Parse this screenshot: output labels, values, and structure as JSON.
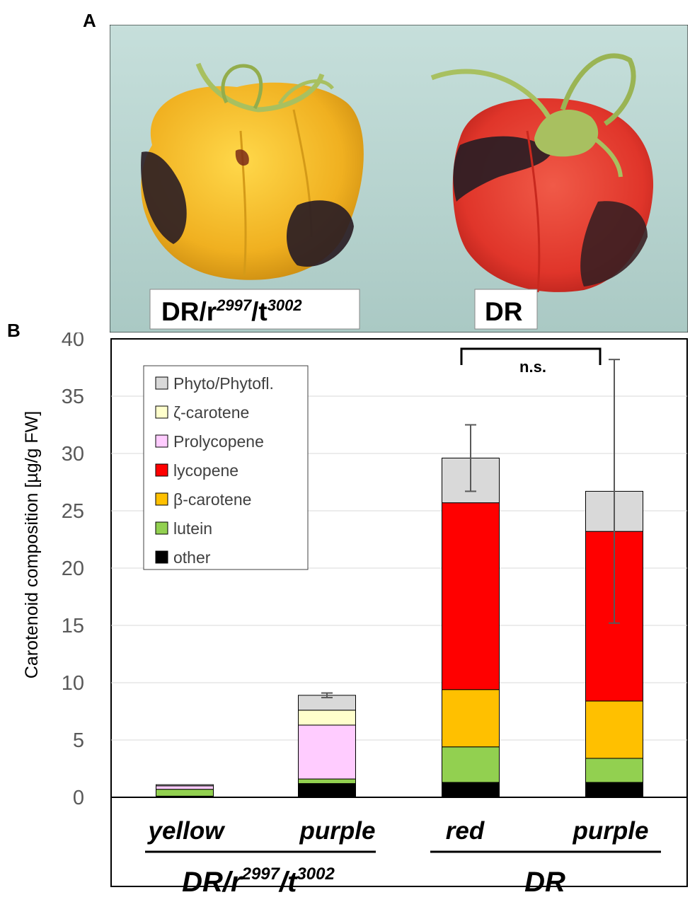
{
  "panels": {
    "a": "A",
    "b": "B"
  },
  "photo": {
    "left_label": {
      "base": "DR/r",
      "sup1": "2997",
      "mid": "/t",
      "sup2": "3002"
    },
    "right_label": "DR",
    "colors": {
      "background": "#b8d6d2",
      "yellow_fruit": "#f0b020",
      "red_fruit": "#e23a2c",
      "dark_patch": "#2a1d24",
      "stem": "#a8c060"
    }
  },
  "chart_data": {
    "type": "bar",
    "stacked": true,
    "ylabel": "Carotenoid composition [µg/g FW]",
    "ylim": [
      0,
      40
    ],
    "yticks": [
      0,
      5,
      10,
      15,
      20,
      25,
      30,
      35,
      40
    ],
    "grid": true,
    "categories": [
      "yellow",
      "purple",
      "red",
      "purple"
    ],
    "groups": [
      {
        "label_base": "DR/r",
        "sup1": "2997",
        "mid": "/t",
        "sup2": "3002",
        "categories": [
          0,
          1
        ]
      },
      {
        "label": "DR",
        "categories": [
          2,
          3
        ]
      }
    ],
    "series": [
      {
        "name": "other",
        "color": "#000000",
        "values": [
          0.1,
          1.2,
          1.3,
          1.3
        ]
      },
      {
        "name": "lutein",
        "color": "#92d050",
        "values": [
          0.6,
          0.4,
          3.1,
          2.1
        ]
      },
      {
        "name": "β-carotene",
        "color": "#ffc000",
        "values": [
          0.0,
          0.0,
          5.0,
          5.0
        ]
      },
      {
        "name": "lycopene",
        "color": "#ff0000",
        "values": [
          0.0,
          0.0,
          16.3,
          14.8
        ]
      },
      {
        "name": "Prolycopene",
        "color": "#ffccff",
        "values": [
          0.3,
          4.7,
          0.0,
          0.0
        ]
      },
      {
        "name": "ζ-carotene",
        "color": "#ffffcc",
        "values": [
          0.0,
          1.3,
          0.0,
          0.0
        ]
      },
      {
        "name": "Phyto/Phytofl.",
        "color": "#d9d9d9",
        "values": [
          0.1,
          1.3,
          3.9,
          3.5
        ]
      }
    ],
    "legend_order": [
      "Phyto/Phytofl.",
      "ζ-carotene",
      "Prolycopene",
      "lycopene",
      "β-carotene",
      "lutein",
      "other"
    ],
    "legend_text": [
      "Phyto/Phytofl.",
      "ζ-carotene",
      "Prolycopene",
      " lycopene",
      "β-carotene",
      "lutein",
      "other"
    ],
    "legend_position": "top-left",
    "error_bars": [
      null,
      0.2,
      2.9,
      11.5
    ],
    "annotation": {
      "text": "n.s.",
      "between": [
        2,
        3
      ]
    }
  }
}
